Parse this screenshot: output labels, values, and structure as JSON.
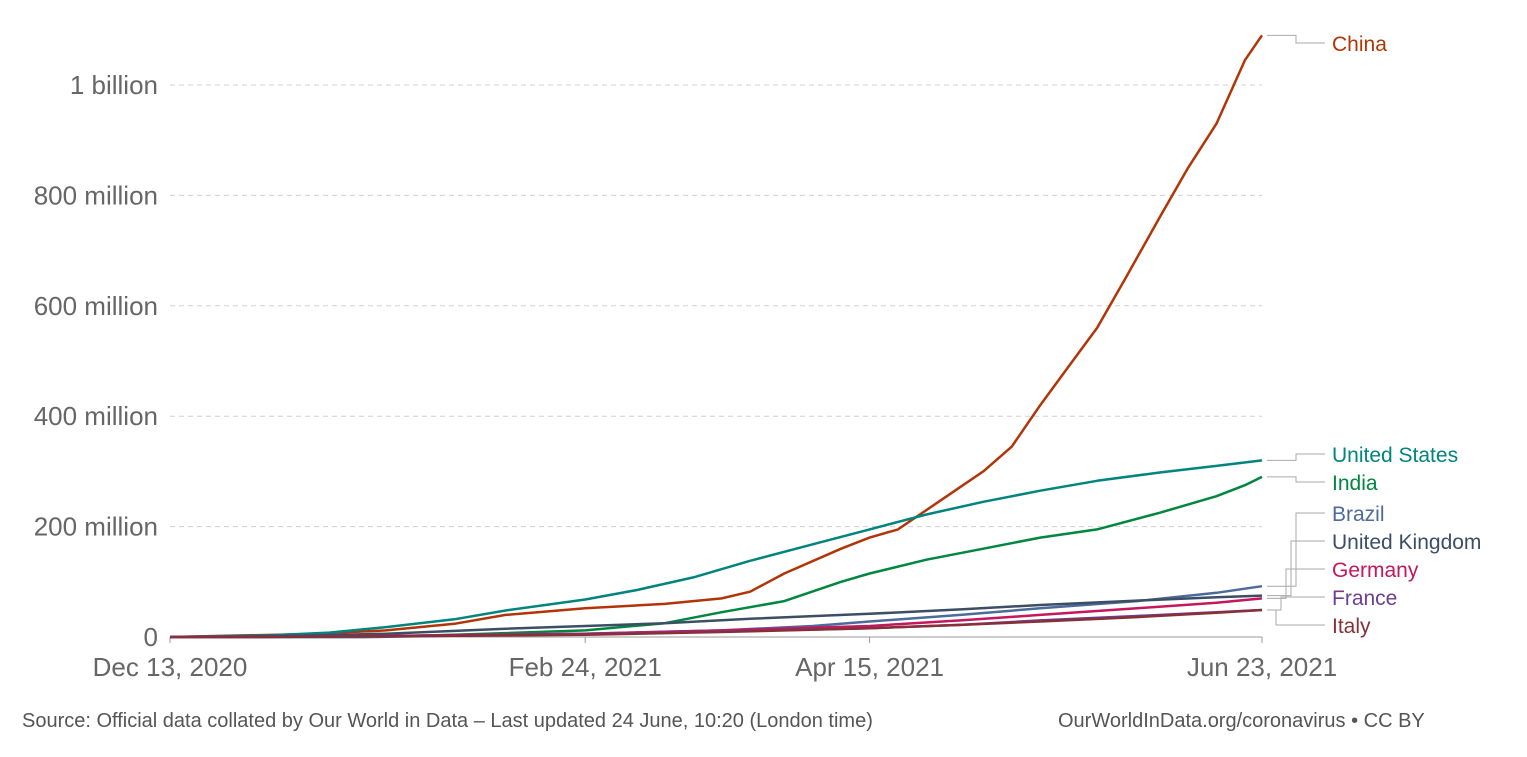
{
  "footer": {
    "source": "Source: Official data collated by Our World in Data – Last updated 24 June, 10:20 (London time)",
    "url": "OurWorldInData.org/coronavirus • CC BY"
  },
  "chart_data": {
    "type": "line",
    "title": "",
    "xlabel": "",
    "ylabel": "",
    "x_start": "2020-12-13",
    "x_end": "2021-06-23",
    "x_ticks": [
      {
        "date": "2020-12-13",
        "label": "Dec 13, 2020"
      },
      {
        "date": "2021-02-24",
        "label": "Feb 24, 2021"
      },
      {
        "date": "2021-04-15",
        "label": "Apr 15, 2021"
      },
      {
        "date": "2021-06-23",
        "label": "Jun 23, 2021"
      }
    ],
    "ylim": [
      0,
      1000000000
    ],
    "y_ticks": [
      {
        "value": 0,
        "label": "0"
      },
      {
        "value": 200000000,
        "label": "200 million"
      },
      {
        "value": 400000000,
        "label": "400 million"
      },
      {
        "value": 600000000,
        "label": "600 million"
      },
      {
        "value": 800000000,
        "label": "800 million"
      },
      {
        "value": 1000000000,
        "label": "1 billion"
      }
    ],
    "grid": "horizontal dashed",
    "series": [
      {
        "name": "China",
        "color": "#b13507",
        "points": [
          [
            "2020-12-13",
            0
          ],
          [
            "2021-01-05",
            5000000
          ],
          [
            "2021-01-20",
            12000000
          ],
          [
            "2021-02-01",
            24000000
          ],
          [
            "2021-02-10",
            40000000
          ],
          [
            "2021-02-24",
            52000000
          ],
          [
            "2021-03-10",
            60000000
          ],
          [
            "2021-03-20",
            70000000
          ],
          [
            "2021-03-25",
            82000000
          ],
          [
            "2021-03-31",
            115000000
          ],
          [
            "2021-04-10",
            160000000
          ],
          [
            "2021-04-15",
            180000000
          ],
          [
            "2021-04-20",
            195000000
          ],
          [
            "2021-04-30",
            265000000
          ],
          [
            "2021-05-05",
            300000000
          ],
          [
            "2021-05-10",
            345000000
          ],
          [
            "2021-05-15",
            420000000
          ],
          [
            "2021-05-20",
            490000000
          ],
          [
            "2021-05-25",
            560000000
          ],
          [
            "2021-05-30",
            650000000
          ],
          [
            "2021-06-05",
            760000000
          ],
          [
            "2021-06-10",
            850000000
          ],
          [
            "2021-06-15",
            930000000
          ],
          [
            "2021-06-20",
            1045000000
          ],
          [
            "2021-06-23",
            1090000000
          ]
        ]
      },
      {
        "name": "United States",
        "color": "#00847e",
        "points": [
          [
            "2020-12-13",
            0
          ],
          [
            "2020-12-31",
            3000000
          ],
          [
            "2021-01-10",
            8000000
          ],
          [
            "2021-01-20",
            18000000
          ],
          [
            "2021-02-01",
            32000000
          ],
          [
            "2021-02-10",
            48000000
          ],
          [
            "2021-02-24",
            68000000
          ],
          [
            "2021-03-05",
            85000000
          ],
          [
            "2021-03-15",
            108000000
          ],
          [
            "2021-03-25",
            138000000
          ],
          [
            "2021-04-05",
            168000000
          ],
          [
            "2021-04-15",
            195000000
          ],
          [
            "2021-04-25",
            222000000
          ],
          [
            "2021-05-05",
            245000000
          ],
          [
            "2021-05-15",
            265000000
          ],
          [
            "2021-05-25",
            283000000
          ],
          [
            "2021-06-05",
            298000000
          ],
          [
            "2021-06-15",
            310000000
          ],
          [
            "2021-06-23",
            320000000
          ]
        ]
      },
      {
        "name": "India",
        "color": "#00873f",
        "points": [
          [
            "2020-12-13",
            0
          ],
          [
            "2021-01-16",
            0
          ],
          [
            "2021-02-01",
            4000000
          ],
          [
            "2021-02-24",
            12000000
          ],
          [
            "2021-03-10",
            25000000
          ],
          [
            "2021-03-20",
            45000000
          ],
          [
            "2021-03-31",
            65000000
          ],
          [
            "2021-04-10",
            100000000
          ],
          [
            "2021-04-15",
            115000000
          ],
          [
            "2021-04-25",
            140000000
          ],
          [
            "2021-05-05",
            160000000
          ],
          [
            "2021-05-15",
            180000000
          ],
          [
            "2021-05-25",
            195000000
          ],
          [
            "2021-06-05",
            225000000
          ],
          [
            "2021-06-15",
            255000000
          ],
          [
            "2021-06-20",
            275000000
          ],
          [
            "2021-06-23",
            290000000
          ]
        ]
      },
      {
        "name": "Brazil",
        "color": "#4c6a9c",
        "points": [
          [
            "2020-12-13",
            0
          ],
          [
            "2021-01-18",
            0
          ],
          [
            "2021-02-24",
            6000000
          ],
          [
            "2021-03-20",
            12000000
          ],
          [
            "2021-04-05",
            20000000
          ],
          [
            "2021-04-15",
            28000000
          ],
          [
            "2021-05-01",
            40000000
          ],
          [
            "2021-05-15",
            52000000
          ],
          [
            "2021-06-01",
            65000000
          ],
          [
            "2021-06-15",
            80000000
          ],
          [
            "2021-06-23",
            92000000
          ]
        ]
      },
      {
        "name": "United Kingdom",
        "color": "#3c4e66",
        "points": [
          [
            "2020-12-13",
            0
          ],
          [
            "2021-01-05",
            2000000
          ],
          [
            "2021-01-20",
            6000000
          ],
          [
            "2021-02-10",
            15000000
          ],
          [
            "2021-02-24",
            20000000
          ],
          [
            "2021-03-10",
            25000000
          ],
          [
            "2021-03-25",
            33000000
          ],
          [
            "2021-04-15",
            42000000
          ],
          [
            "2021-05-01",
            50000000
          ],
          [
            "2021-05-15",
            58000000
          ],
          [
            "2021-06-01",
            66000000
          ],
          [
            "2021-06-15",
            72000000
          ],
          [
            "2021-06-23",
            75000000
          ]
        ]
      },
      {
        "name": "Germany",
        "color": "#c4175c",
        "points": [
          [
            "2020-12-13",
            0
          ],
          [
            "2020-12-27",
            0
          ],
          [
            "2021-01-20",
            2000000
          ],
          [
            "2021-02-24",
            6000000
          ],
          [
            "2021-03-20",
            12000000
          ],
          [
            "2021-04-15",
            20000000
          ],
          [
            "2021-05-01",
            30000000
          ],
          [
            "2021-05-15",
            40000000
          ],
          [
            "2021-06-01",
            52000000
          ],
          [
            "2021-06-15",
            62000000
          ],
          [
            "2021-06-23",
            70000000
          ]
        ]
      },
      {
        "name": "France",
        "color": "#6d3e91",
        "points": [
          [
            "2020-12-13",
            0
          ],
          [
            "2020-12-27",
            0
          ],
          [
            "2021-01-20",
            1000000
          ],
          [
            "2021-02-24",
            5000000
          ],
          [
            "2021-03-20",
            10000000
          ],
          [
            "2021-04-15",
            16000000
          ],
          [
            "2021-05-01",
            22000000
          ],
          [
            "2021-05-15",
            30000000
          ],
          [
            "2021-06-01",
            38000000
          ],
          [
            "2021-06-15",
            45000000
          ],
          [
            "2021-06-23",
            49000000
          ]
        ]
      },
      {
        "name": "Italy",
        "color": "#883039",
        "points": [
          [
            "2020-12-13",
            0
          ],
          [
            "2020-12-27",
            0
          ],
          [
            "2021-01-20",
            1500000
          ],
          [
            "2021-02-24",
            4000000
          ],
          [
            "2021-03-20",
            9000000
          ],
          [
            "2021-04-15",
            16000000
          ],
          [
            "2021-05-01",
            22000000
          ],
          [
            "2021-05-15",
            28000000
          ],
          [
            "2021-06-01",
            36000000
          ],
          [
            "2021-06-15",
            44000000
          ],
          [
            "2021-06-23",
            49000000
          ]
        ]
      }
    ],
    "legend": {
      "position": "right",
      "labels": [
        {
          "series": "China",
          "text": "China"
        },
        {
          "series": "United States",
          "text": "United States"
        },
        {
          "series": "India",
          "text": "India"
        },
        {
          "series": "Brazil",
          "text": "Brazil"
        },
        {
          "series": "United Kingdom",
          "text": "United Kingdom"
        },
        {
          "series": "Germany",
          "text": "Germany"
        },
        {
          "series": "France",
          "text": "France"
        },
        {
          "series": "Italy",
          "text": "Italy"
        }
      ]
    }
  }
}
